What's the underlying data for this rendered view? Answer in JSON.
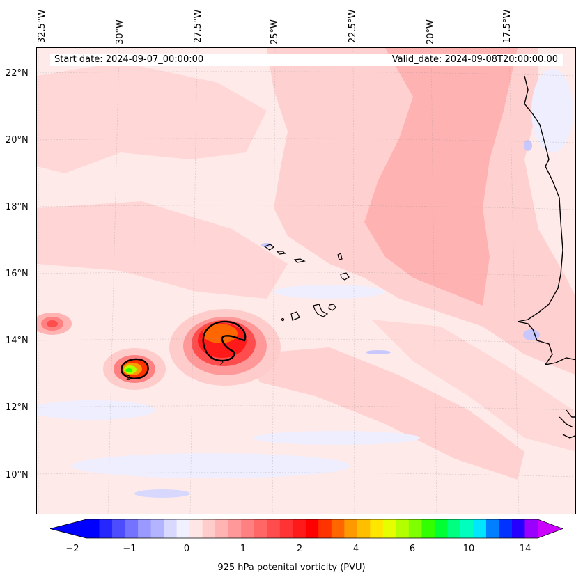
{
  "header": {
    "start_date": "Start date: 2024-09-07_00:00:00",
    "valid_date": "Valid_date: 2024-09-08T20:00:00.00"
  },
  "longitude_labels": [
    "32.5°W",
    "30°W",
    "27.5°W",
    "25°W",
    "22.5°W",
    "20°W",
    "17.5°W"
  ],
  "latitude_labels": [
    "22°N",
    "20°N",
    "18°N",
    "16°N",
    "14°N",
    "12°N",
    "10°N"
  ],
  "map": {
    "variable": "potential vorticity",
    "background_color": "#ffeaea",
    "coastline_color": "#000000",
    "contour_labels": [
      "2",
      "2"
    ]
  },
  "colorbar": {
    "label": "925 hPa potenital vorticity (PVU)",
    "tick_labels": [
      "−2",
      "−1",
      "0",
      "1",
      "2",
      "4",
      "6",
      "10",
      "14"
    ],
    "colors": [
      "#0000ff",
      "#2626ff",
      "#4d4dff",
      "#7373ff",
      "#9999ff",
      "#b3b3ff",
      "#d9d9ff",
      "#f0f0ff",
      "#ffe6e6",
      "#ffcccc",
      "#ffb3b3",
      "#ff9999",
      "#ff8080",
      "#ff6666",
      "#ff4d4d",
      "#ff3333",
      "#ff1a1a",
      "#ff0000",
      "#ff3300",
      "#ff6600",
      "#ff9900",
      "#ffbf00",
      "#ffe600",
      "#e6ff00",
      "#b3ff00",
      "#80ff00",
      "#33ff00",
      "#00ff33",
      "#00ff80",
      "#00ffbf",
      "#00e6ff",
      "#0080ff",
      "#0033ff",
      "#2600ff",
      "#9900ff"
    ],
    "extend_left_color": "#0000ff",
    "extend_right_color": "#cc00ff"
  }
}
